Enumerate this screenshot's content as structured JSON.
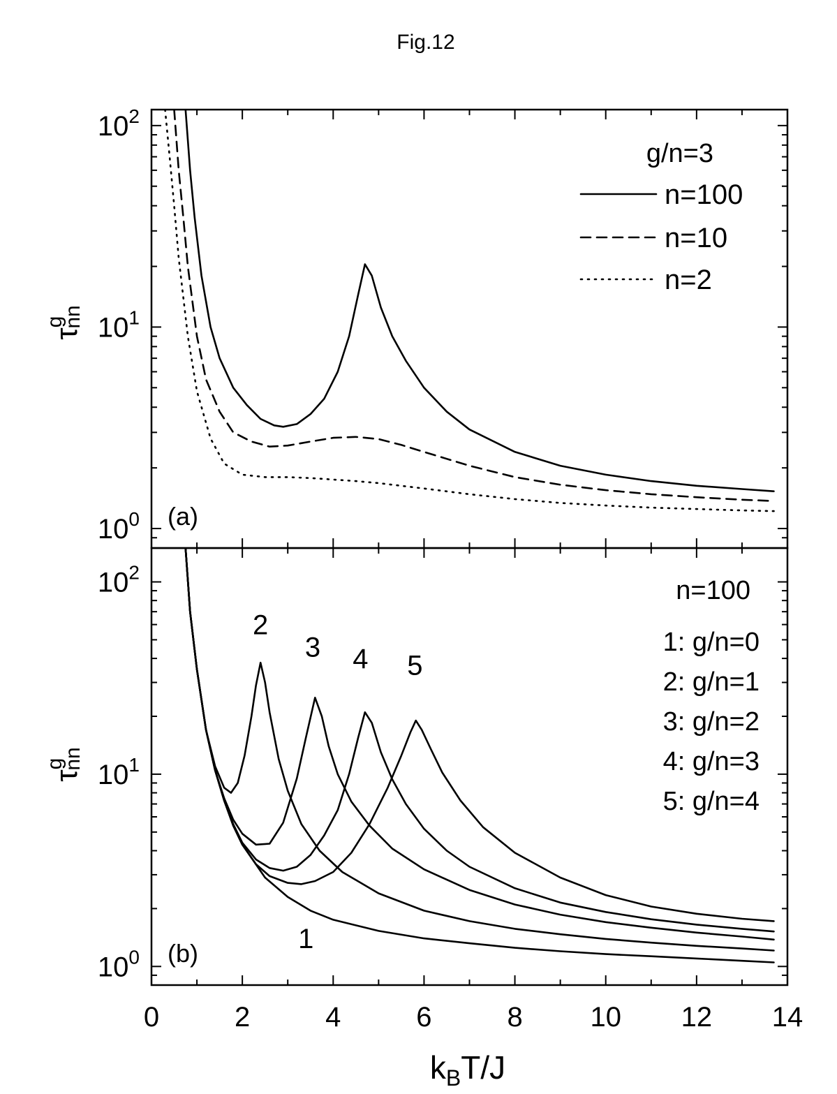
{
  "figure_title": "Fig.12",
  "x_axis_label": {
    "main": "k",
    "sub": "B",
    "rest": "T/J"
  },
  "y_axis_label": {
    "base": "τ",
    "sup": "g",
    "sub": "nn"
  },
  "chart_data": [
    {
      "type": "line",
      "panel_label": "(a)",
      "log_y": true,
      "xlim": [
        0,
        14
      ],
      "ylim": [
        0.8,
        120
      ],
      "y_ticks": [
        {
          "v": 1,
          "b": "10",
          "e": "0"
        },
        {
          "v": 10,
          "b": "10",
          "e": "1"
        },
        {
          "v": 100,
          "b": "10",
          "e": "2"
        }
      ],
      "legend_title": "g/n=3",
      "legend_placement": "top-right",
      "series": [
        {
          "name": "n=100",
          "style": "solid",
          "x": [
            0.75,
            0.85,
            0.95,
            1.1,
            1.3,
            1.5,
            1.8,
            2.1,
            2.4,
            2.7,
            2.9,
            3.2,
            3.5,
            3.8,
            4.1,
            4.35,
            4.55,
            4.7,
            4.85,
            5.05,
            5.3,
            5.6,
            6.0,
            6.5,
            7.0,
            8.0,
            9.0,
            10.0,
            11.0,
            12.0,
            13.0,
            13.7
          ],
          "y": [
            120,
            60,
            35,
            18,
            10,
            7,
            5,
            4.1,
            3.5,
            3.25,
            3.2,
            3.3,
            3.7,
            4.4,
            6.0,
            9.0,
            14.5,
            20.5,
            18.0,
            12.5,
            9.0,
            6.8,
            5.0,
            3.8,
            3.1,
            2.4,
            2.05,
            1.85,
            1.72,
            1.63,
            1.57,
            1.53
          ]
        },
        {
          "name": "n=10",
          "style": "dashed",
          "x": [
            0.5,
            0.6,
            0.7,
            0.8,
            1.0,
            1.2,
            1.5,
            1.8,
            2.2,
            2.6,
            3.0,
            3.5,
            4.0,
            4.5,
            5.0,
            5.5,
            6.0,
            7.0,
            8.0,
            9.0,
            10.0,
            11.0,
            12.0,
            13.0,
            13.7
          ],
          "y": [
            120,
            60,
            35,
            20,
            9,
            5.5,
            3.8,
            3.0,
            2.7,
            2.55,
            2.58,
            2.7,
            2.82,
            2.85,
            2.78,
            2.6,
            2.4,
            2.05,
            1.8,
            1.65,
            1.55,
            1.48,
            1.43,
            1.39,
            1.37
          ]
        },
        {
          "name": "n=2",
          "style": "dotted",
          "x": [
            0.3,
            0.4,
            0.5,
            0.6,
            0.8,
            1.0,
            1.3,
            1.6,
            2.0,
            2.5,
            3.0,
            3.5,
            4.0,
            4.5,
            5.0,
            6.0,
            7.0,
            8.0,
            9.0,
            10.0,
            11.0,
            12.0,
            13.0,
            13.7
          ],
          "y": [
            120,
            70,
            40,
            22,
            9,
            4.8,
            2.8,
            2.1,
            1.85,
            1.8,
            1.8,
            1.78,
            1.75,
            1.72,
            1.68,
            1.58,
            1.48,
            1.4,
            1.34,
            1.3,
            1.27,
            1.25,
            1.23,
            1.22
          ]
        }
      ]
    },
    {
      "type": "line",
      "panel_label": "(b)",
      "log_y": true,
      "xlim": [
        0,
        14
      ],
      "ylim": [
        0.8,
        150
      ],
      "y_ticks": [
        {
          "v": 1,
          "b": "10",
          "e": "0"
        },
        {
          "v": 10,
          "b": "10",
          "e": "1"
        },
        {
          "v": 100,
          "b": "10",
          "e": "2"
        }
      ],
      "legend_title": "n=100",
      "legend_entries": [
        "1: g/n=0",
        "2: g/n=1",
        "3: g/n=2",
        "4: g/n=3",
        "5: g/n=4"
      ],
      "legend_placement": "top-right",
      "series": [
        {
          "label": "1",
          "label_at": [
            3.4,
            1.4
          ],
          "x": [
            0.75,
            0.85,
            1.0,
            1.2,
            1.4,
            1.6,
            1.8,
            2.0,
            2.5,
            3.0,
            3.5,
            4.0,
            5.0,
            6.0,
            7.0,
            8.0,
            9.0,
            10.0,
            11.0,
            12.0,
            13.0,
            13.7
          ],
          "y": [
            150,
            70,
            35,
            17,
            10.5,
            7.3,
            5.4,
            4.3,
            2.9,
            2.3,
            1.95,
            1.75,
            1.53,
            1.4,
            1.32,
            1.25,
            1.2,
            1.16,
            1.13,
            1.1,
            1.07,
            1.05
          ]
        },
        {
          "label": "2",
          "label_at": [
            2.4,
            60
          ],
          "x": [
            0.75,
            0.85,
            1.0,
            1.2,
            1.4,
            1.6,
            1.75,
            1.9,
            2.05,
            2.2,
            2.3,
            2.4,
            2.5,
            2.6,
            2.8,
            3.0,
            3.3,
            3.7,
            4.2,
            5.0,
            6.0,
            7.0,
            8.0,
            9.0,
            10.0,
            11.0,
            12.0,
            13.0,
            13.7
          ],
          "y": [
            150,
            70,
            35,
            17,
            11,
            8.5,
            8.0,
            9.0,
            12.5,
            20,
            29,
            38,
            30,
            21,
            12,
            8.2,
            5.5,
            4.0,
            3.1,
            2.4,
            1.95,
            1.72,
            1.57,
            1.47,
            1.39,
            1.33,
            1.28,
            1.24,
            1.21
          ]
        },
        {
          "label": "3",
          "label_at": [
            3.55,
            46
          ],
          "x": [
            0.75,
            0.85,
            1.0,
            1.2,
            1.4,
            1.6,
            1.8,
            2.0,
            2.3,
            2.6,
            2.9,
            3.2,
            3.4,
            3.6,
            3.75,
            3.9,
            4.1,
            4.4,
            4.8,
            5.3,
            6.0,
            7.0,
            8.0,
            9.0,
            10.0,
            11.0,
            12.0,
            13.0,
            13.7
          ],
          "y": [
            150,
            70,
            35,
            17,
            10.5,
            7.5,
            5.8,
            4.9,
            4.3,
            4.35,
            5.6,
            9.5,
            15.5,
            25,
            20,
            14,
            10,
            7.2,
            5.4,
            4.1,
            3.2,
            2.5,
            2.1,
            1.86,
            1.7,
            1.59,
            1.5,
            1.43,
            1.38
          ]
        },
        {
          "label": "4",
          "label_at": [
            4.6,
            40
          ],
          "x": [
            0.75,
            0.85,
            1.0,
            1.2,
            1.4,
            1.6,
            1.8,
            2.0,
            2.3,
            2.6,
            2.9,
            3.2,
            3.5,
            3.8,
            4.1,
            4.35,
            4.55,
            4.7,
            4.85,
            5.05,
            5.3,
            5.6,
            6.0,
            6.5,
            7.0,
            8.0,
            9.0,
            10.0,
            11.0,
            12.0,
            13.0,
            13.7
          ],
          "y": [
            150,
            70,
            35,
            17,
            10.5,
            7.3,
            5.5,
            4.4,
            3.6,
            3.25,
            3.15,
            3.3,
            3.8,
            4.8,
            6.5,
            10,
            15.5,
            21,
            18.5,
            13,
            9.4,
            7.0,
            5.2,
            4.0,
            3.3,
            2.55,
            2.15,
            1.92,
            1.76,
            1.65,
            1.57,
            1.52
          ]
        },
        {
          "label": "5",
          "label_at": [
            5.8,
            37
          ],
          "x": [
            0.75,
            0.85,
            1.0,
            1.2,
            1.4,
            1.6,
            1.8,
            2.0,
            2.3,
            2.6,
            3.0,
            3.3,
            3.6,
            4.0,
            4.4,
            4.8,
            5.2,
            5.5,
            5.7,
            5.82,
            5.95,
            6.15,
            6.4,
            6.8,
            7.3,
            8.0,
            9.0,
            10.0,
            11.0,
            12.0,
            13.0,
            13.7
          ],
          "y": [
            150,
            70,
            35,
            17,
            10.5,
            7.3,
            5.4,
            4.3,
            3.4,
            2.95,
            2.72,
            2.68,
            2.78,
            3.1,
            3.9,
            5.5,
            8.5,
            12.5,
            16.5,
            19,
            17,
            13.5,
            10.2,
            7.3,
            5.3,
            3.9,
            2.9,
            2.35,
            2.05,
            1.88,
            1.77,
            1.72
          ]
        }
      ]
    }
  ]
}
